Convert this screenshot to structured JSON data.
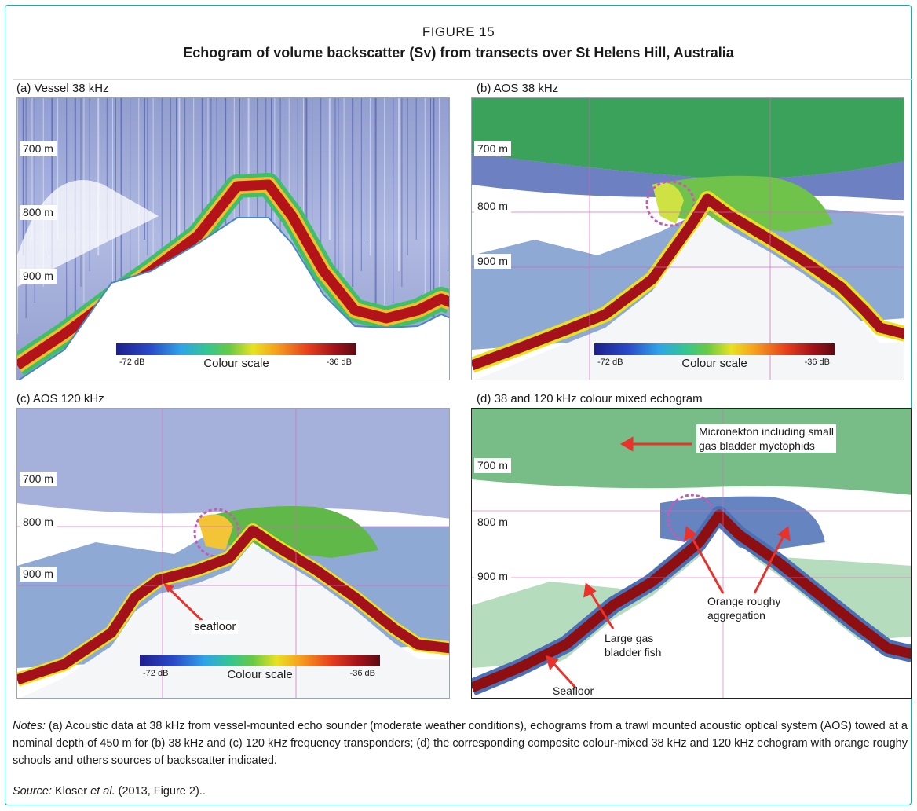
{
  "figure": {
    "label": "FIGURE 15",
    "title": "Echogram of volume backscatter (Sv) from transects over St Helens Hill, Australia"
  },
  "colors": {
    "frame": "#2aa59b",
    "seafloor_echo": "#8e0f12",
    "backscatter_low": "#1e1f8c",
    "backscatter_high": "#5e0a12",
    "mixed_fish": "#4b6fb5",
    "micronekton": "#2f9a46",
    "arrow": "#e8322b",
    "school_circle": "#c55bb5"
  },
  "panels": [
    {
      "id": "a",
      "title": "(a) Vessel 38 kHz",
      "depths": [
        "700 m",
        "800 m",
        "900 m"
      ],
      "colour_scale": {
        "low": "-72 dB",
        "label": "Colour scale",
        "high": "-36 dB"
      }
    },
    {
      "id": "b",
      "title": "(b) AOS 38 kHz",
      "depths": [
        "700 m",
        "800 m",
        "900 m"
      ],
      "colour_scale": {
        "low": "-72 dB",
        "label": "Colour scale",
        "high": "-36 dB"
      }
    },
    {
      "id": "c",
      "title": "(c) AOS 120 kHz",
      "depths": [
        "700 m",
        "800 m",
        "900 m"
      ],
      "colour_scale": {
        "low": "-72 dB",
        "label": "Colour scale",
        "high": "-36 dB"
      },
      "annotations": {
        "seafloor": "seafloor"
      }
    },
    {
      "id": "d",
      "title": "(d) 38 and 120 kHz colour mixed echogram",
      "depths": [
        "700 m",
        "800 m",
        "900 m"
      ],
      "annotations": {
        "micronekton_line1": "Micronekton including small",
        "micronekton_line2": "gas bladder myctophids",
        "roughy_line1": "Orange roughy",
        "roughy_line2": "aggregation",
        "gasfish_line1": "Large gas",
        "gasfish_line2": "bladder fish",
        "seafloor": "Seafloor"
      }
    }
  ],
  "notes": {
    "label": "Notes:",
    "text": " (a) Acoustic data at 38 kHz from vessel-mounted echo sounder (moderate weather conditions), echograms from a trawl mounted acoustic optical system (AOS) towed at a nominal depth of 450 m for (b) 38 kHz and (c) 120 kHz frequency transponders; (d) the corresponding composite colour-mixed 38 kHz and 120 kHz echogram with orange roughy schools and others sources of backscatter indicated."
  },
  "source": {
    "label": "Source:",
    "author": " Kloser ",
    "etal": "et al.",
    "rest": " (2013, Figure 2).."
  }
}
